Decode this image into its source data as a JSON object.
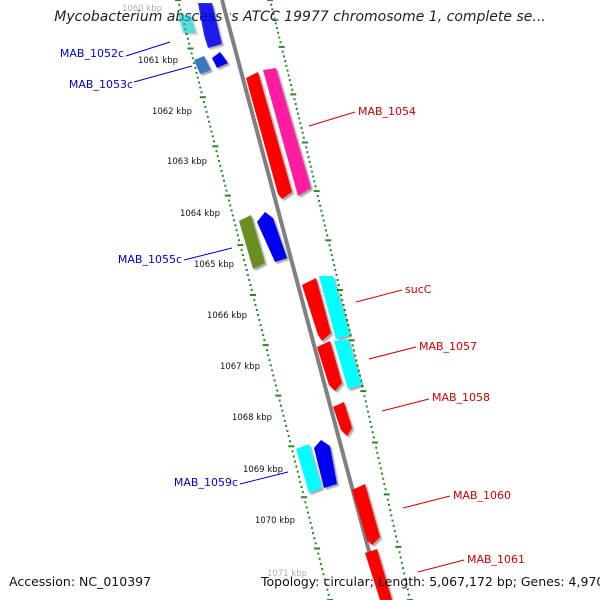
{
  "title": "Mycobacterium abscessus ATCC 19977 chromosome 1, complete se...",
  "footer": {
    "accession": "Accession: NC_010397",
    "topology": "Topology: circular; Length: 5,067,172 bp; Genes: 4,970"
  },
  "colors": {
    "forward_label": "#cc0000",
    "reverse_label": "#0000cc",
    "tick": "#228b22",
    "backbone": "#808080"
  },
  "ruler": [
    {
      "label": "1060 kbp",
      "faded": true
    },
    {
      "label": "1061 kbp"
    },
    {
      "label": "1062 kbp"
    },
    {
      "label": "1063 kbp"
    },
    {
      "label": "1064 kbp"
    },
    {
      "label": "1065 kbp"
    },
    {
      "label": "1066 kbp"
    },
    {
      "label": "1067 kbp"
    },
    {
      "label": "1068 kbp"
    },
    {
      "label": "1069 kbp"
    },
    {
      "label": "1070 kbp"
    },
    {
      "label": "1071 kbp",
      "faded": true
    }
  ],
  "genes": [
    {
      "name": "MAB_1052c",
      "strand": "reverse"
    },
    {
      "name": "MAB_1053c",
      "strand": "reverse"
    },
    {
      "name": "MAB_1054",
      "strand": "forward"
    },
    {
      "name": "MAB_1055c",
      "strand": "reverse"
    },
    {
      "name": "sucC",
      "strand": "forward"
    },
    {
      "name": "MAB_1057",
      "strand": "forward"
    },
    {
      "name": "MAB_1058",
      "strand": "forward"
    },
    {
      "name": "MAB_1059c",
      "strand": "reverse"
    },
    {
      "name": "MAB_1060",
      "strand": "forward"
    },
    {
      "name": "MAB_1061",
      "strand": "forward"
    }
  ]
}
